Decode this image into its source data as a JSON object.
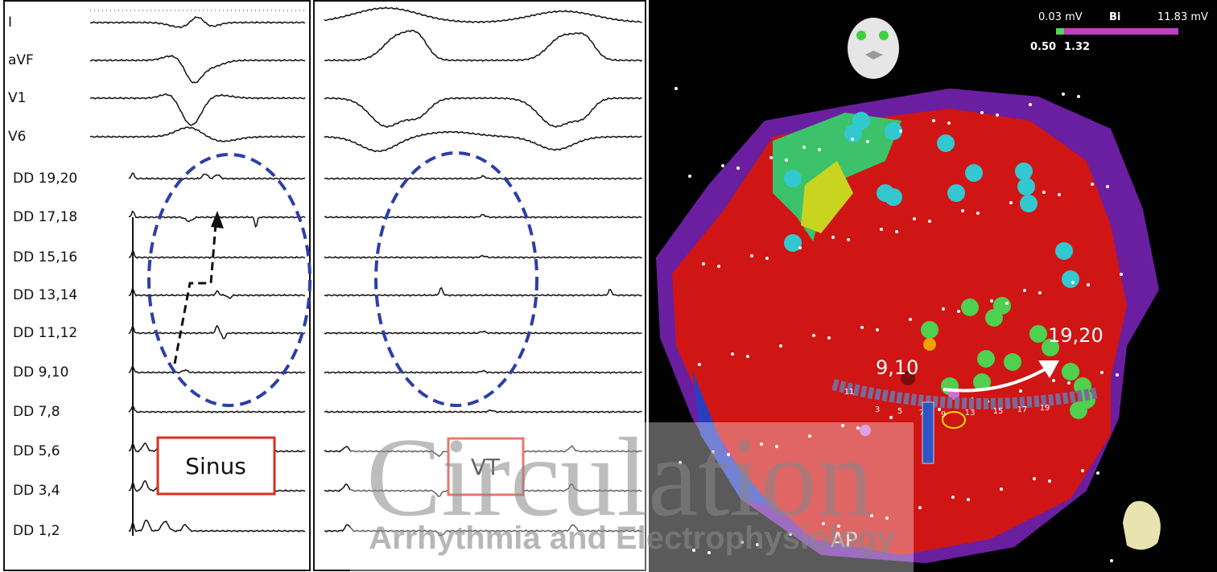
{
  "sinus_panel": {
    "leads": [
      "I",
      "aVF",
      "V1",
      "V6",
      "DD 19,20",
      "DD 17,18",
      "DD 15,16",
      "DD 13,14",
      "DD 11,12",
      "DD 9,10",
      "DD 7,8",
      "DD 5,6",
      "DD 3,4",
      "DD 1,2"
    ],
    "box_label": "Sinus"
  },
  "vt_panel": {
    "box_label": "VT"
  },
  "map": {
    "scale_min": "0.03 mV",
    "scale_mode": "Bi",
    "scale_max": "11.83 mV",
    "low_threshold": "0.50",
    "high_threshold": "1.32",
    "label_start": "9,10",
    "label_end": "19,20",
    "view": "AP",
    "electrodes": [
      "11",
      "3",
      "5",
      "7",
      "9",
      "13",
      "15",
      "17",
      "19"
    ]
  },
  "watermark": {
    "title": "Circulation",
    "subtitle": "Arrhythmia and Electrophysiology"
  }
}
